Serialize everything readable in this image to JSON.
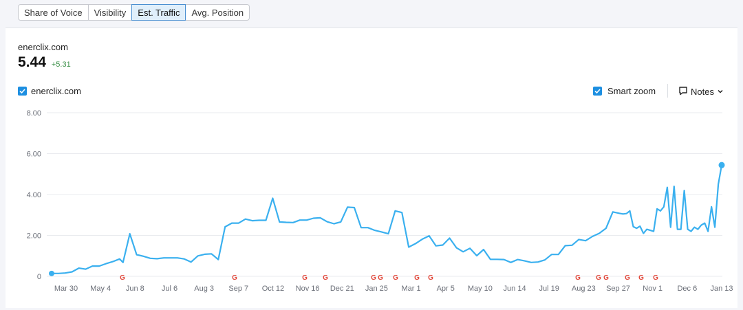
{
  "tabs": [
    {
      "label": "Share of Voice",
      "active": false
    },
    {
      "label": "Visibility",
      "active": false
    },
    {
      "label": "Est. Traffic",
      "active": true
    },
    {
      "label": "Avg. Position",
      "active": false
    }
  ],
  "header": {
    "domain": "enerclix.com",
    "value": "5.44",
    "delta": "+5.31"
  },
  "legend": {
    "label": "enerclix.com",
    "checked": true,
    "color": "#3ab0ef"
  },
  "controls": {
    "smart_zoom_label": "Smart zoom",
    "smart_zoom_checked": true,
    "notes_label": "Notes"
  },
  "colors": {
    "line": "#3ab0ef",
    "accent": "#1d8fe1",
    "delta": "#3a8f47",
    "grid": "#e9ebef"
  },
  "icons": [
    "check-icon",
    "notes-icon",
    "chevron-down-icon",
    "google-update-icon"
  ],
  "chart_data": {
    "type": "line",
    "y_ticks": [
      "0",
      "2.00",
      "4.00",
      "6.00",
      "8.00"
    ],
    "ylim": [
      0,
      8
    ],
    "grid": true,
    "x_ticks": [
      "Mar 30",
      "May 4",
      "Jun 8",
      "Jul 6",
      "Aug 3",
      "Sep 7",
      "Oct 12",
      "Nov 16",
      "Dec 21",
      "Jan 25",
      "Mar 1",
      "Apr 5",
      "May 10",
      "Jun 14",
      "Jul 19",
      "Aug 23",
      "Sep 27",
      "Nov 1",
      "Dec 6",
      "Jan 13"
    ],
    "google_updates": 17,
    "series": [
      {
        "name": "enerclix.com",
        "x": [
          0,
          2,
          4,
          6,
          8,
          10,
          12,
          14,
          16,
          18,
          20,
          21,
          23,
          25,
          27,
          29,
          31,
          33,
          35,
          37,
          39,
          41,
          43,
          45,
          47,
          49,
          51,
          53,
          55,
          57,
          59,
          61,
          63,
          65,
          67,
          69,
          71,
          73,
          75,
          77,
          79,
          81,
          83,
          85,
          87,
          89,
          91,
          93,
          95,
          97,
          99,
          101,
          103,
          105,
          107,
          109,
          111,
          113,
          115,
          117,
          119,
          121,
          123,
          125,
          127,
          129,
          131,
          133,
          135,
          137,
          139,
          141,
          143,
          145,
          147,
          149,
          151,
          153,
          155,
          157,
          159,
          161,
          163,
          165,
          167,
          168,
          169,
          170,
          171,
          172,
          173,
          174,
          175,
          176,
          177,
          178,
          179,
          180,
          181,
          182,
          183,
          184,
          185,
          186,
          187,
          188,
          189,
          190,
          191,
          192,
          193,
          194,
          195,
          196,
          197
        ],
        "y": [
          0.14,
          0.14,
          0.16,
          0.22,
          0.4,
          0.35,
          0.5,
          0.5,
          0.62,
          0.72,
          0.85,
          0.68,
          2.08,
          1.06,
          0.98,
          0.88,
          0.86,
          0.9,
          0.9,
          0.9,
          0.85,
          0.7,
          1.0,
          1.08,
          1.1,
          0.82,
          2.42,
          2.6,
          2.6,
          2.8,
          2.72,
          2.74,
          2.74,
          3.82,
          2.66,
          2.64,
          2.63,
          2.75,
          2.75,
          2.84,
          2.86,
          2.67,
          2.57,
          2.66,
          3.38,
          3.36,
          2.38,
          2.38,
          2.25,
          2.17,
          2.08,
          3.2,
          3.12,
          1.43,
          1.6,
          1.82,
          1.98,
          1.49,
          1.53,
          1.87,
          1.4,
          1.2,
          1.37,
          1.01,
          1.31,
          0.83,
          0.83,
          0.82,
          0.68,
          0.82,
          0.76,
          0.68,
          0.7,
          0.8,
          1.07,
          1.07,
          1.5,
          1.52,
          1.8,
          1.74,
          1.95,
          2.1,
          2.35,
          3.15,
          3.08,
          3.05,
          3.07,
          3.2,
          2.43,
          2.35,
          2.45,
          2.1,
          2.3,
          2.25,
          2.2,
          3.3,
          3.2,
          3.4,
          4.35,
          2.4,
          4.4,
          2.3,
          2.3,
          4.2,
          2.3,
          2.2,
          2.4,
          2.3,
          2.5,
          2.6,
          2.2,
          3.4,
          2.4,
          4.5,
          5.44
        ]
      }
    ]
  }
}
